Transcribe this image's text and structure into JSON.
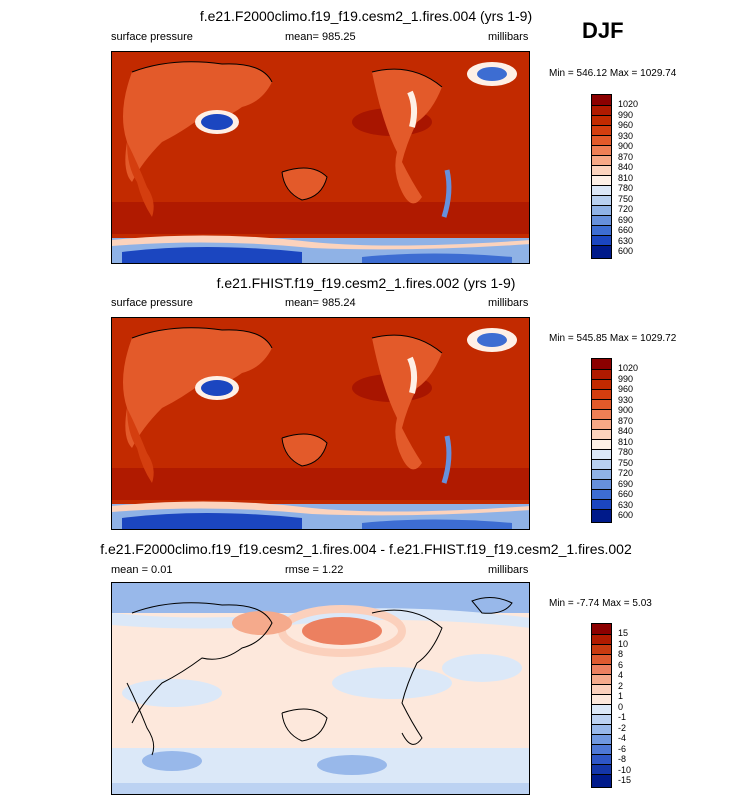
{
  "season": "DJF",
  "chart_data": [
    {
      "type": "heatmap",
      "title": "f.e21.F2000climo.f19_f19.cesm2_1.fires.004 (yrs 1-9)",
      "left_label": "surface pressure",
      "center_label": "mean= 985.25",
      "right_label": "millibars",
      "stats": "Min = 546.12 Max = 1029.74",
      "min": 546.12,
      "max": 1029.74,
      "mean": 985.25,
      "colorbar": {
        "levels": [
          "1020",
          "990",
          "960",
          "930",
          "900",
          "870",
          "840",
          "810",
          "780",
          "750",
          "720",
          "690",
          "660",
          "630",
          "600"
        ],
        "colors": [
          "#8b0000",
          "#b01a00",
          "#c22a00",
          "#d43e0f",
          "#e35a2a",
          "#ef7f55",
          "#f7a886",
          "#fcd3bd",
          "#fef0e6",
          "#dbe7f7",
          "#b8d0f0",
          "#8fb2e6",
          "#6690dc",
          "#3d6dd2",
          "#1b46c0",
          "#001a8a"
        ]
      }
    },
    {
      "type": "heatmap",
      "title": "f.e21.FHIST.f19_f19.cesm2_1.fires.002 (yrs 1-9)",
      "left_label": "surface pressure",
      "center_label": "mean= 985.24",
      "right_label": "millibars",
      "stats": "Min = 545.85 Max = 1029.72",
      "min": 545.85,
      "max": 1029.72,
      "mean": 985.24,
      "colorbar": {
        "levels": [
          "1020",
          "990",
          "960",
          "930",
          "900",
          "870",
          "840",
          "810",
          "780",
          "750",
          "720",
          "690",
          "660",
          "630",
          "600"
        ],
        "colors": [
          "#8b0000",
          "#b01a00",
          "#c22a00",
          "#d43e0f",
          "#e35a2a",
          "#ef7f55",
          "#f7a886",
          "#fcd3bd",
          "#fef0e6",
          "#dbe7f7",
          "#b8d0f0",
          "#8fb2e6",
          "#6690dc",
          "#3d6dd2",
          "#1b46c0",
          "#001a8a"
        ]
      }
    },
    {
      "type": "heatmap",
      "title": "f.e21.F2000climo.f19_f19.cesm2_1.fires.004 - f.e21.FHIST.f19_f19.cesm2_1.fires.002",
      "left_label": "mean =  0.01",
      "center_label": "rmse =   1.22",
      "right_label": "millibars",
      "stats": "Min =  -7.74 Max =   5.03",
      "min": -7.74,
      "max": 5.03,
      "mean": 0.01,
      "rmse": 1.22,
      "colorbar": {
        "levels": [
          "15",
          "10",
          "8",
          "6",
          "4",
          "2",
          "1",
          "0",
          "-1",
          "-2",
          "-4",
          "-6",
          "-8",
          "-10",
          "-15"
        ],
        "colors": [
          "#8b0000",
          "#b01a00",
          "#c83a10",
          "#de5a30",
          "#ec8060",
          "#f5aa8c",
          "#fbd0bc",
          "#fde8dc",
          "#dbe8f8",
          "#bcd2f2",
          "#98b8ea",
          "#7098e0",
          "#4e78d6",
          "#2e56c6",
          "#1436a8",
          "#001a8a"
        ]
      }
    }
  ]
}
